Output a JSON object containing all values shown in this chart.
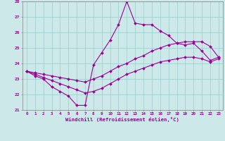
{
  "xlabel": "Windchill (Refroidissement éolien,°C)",
  "background_color": "#cce8e8",
  "line_color": "#990099",
  "grid_color": "#99cccc",
  "hours": [
    0,
    1,
    2,
    3,
    4,
    5,
    6,
    7,
    8,
    9,
    10,
    11,
    12,
    13,
    14,
    15,
    16,
    17,
    18,
    19,
    20,
    21,
    22,
    23
  ],
  "line_spiky": [
    23.5,
    23.2,
    23.0,
    22.5,
    22.2,
    21.9,
    21.3,
    21.3,
    23.9,
    24.7,
    25.5,
    26.5,
    28.0,
    26.6,
    26.5,
    26.5,
    26.1,
    25.8,
    25.3,
    25.2,
    25.3,
    24.8,
    24.2,
    24.4
  ],
  "line_upper": [
    23.5,
    23.4,
    23.3,
    23.2,
    23.1,
    23.0,
    22.9,
    22.8,
    23.0,
    23.2,
    23.5,
    23.8,
    24.0,
    24.3,
    24.5,
    24.8,
    25.0,
    25.2,
    25.3,
    25.4,
    25.4,
    25.4,
    25.1,
    24.4
  ],
  "line_lower": [
    23.5,
    23.3,
    23.1,
    22.9,
    22.7,
    22.5,
    22.3,
    22.1,
    22.2,
    22.4,
    22.7,
    23.0,
    23.3,
    23.5,
    23.7,
    23.9,
    24.1,
    24.2,
    24.3,
    24.4,
    24.4,
    24.3,
    24.1,
    24.3
  ],
  "ylim": [
    21,
    28
  ],
  "yticks": [
    21,
    22,
    23,
    24,
    25,
    26,
    27,
    28
  ],
  "xlim": [
    -0.5,
    23.5
  ]
}
